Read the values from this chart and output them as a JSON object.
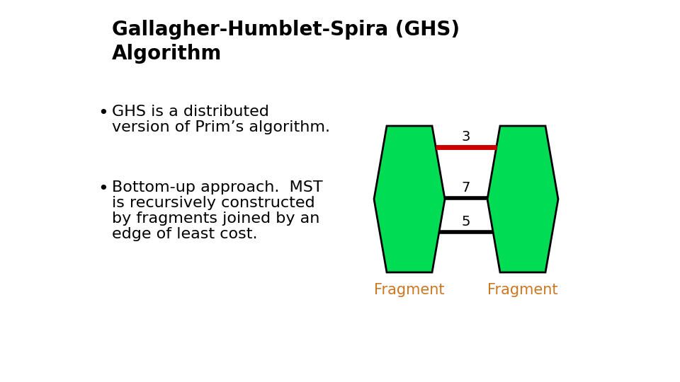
{
  "title_line1": "Gallagher-Humblet-Spira (GHS)",
  "title_line2": "Algorithm",
  "bullet1_line1": "GHS is a distributed",
  "bullet1_line2": "version of Prim’s algorithm.",
  "bullet2_line1": "Bottom-up approach.  MST",
  "bullet2_line2": "is recursively constructed",
  "bullet2_line3": "by fragments joined by an",
  "bullet2_line4": "edge of least cost.",
  "fragment_label": "Fragment",
  "fragment_color": "#00dd55",
  "fragment_outline": "#000000",
  "edge_red_color": "#cc0000",
  "edge_black_color": "#000000",
  "label_color": "#cc7722",
  "edge_label_3": "3",
  "edge_label_7": "7",
  "edge_label_5": "5",
  "bg_color": "#ffffff",
  "title_fontsize": 20,
  "bullet_fontsize": 16,
  "fragment_fontsize": 15
}
